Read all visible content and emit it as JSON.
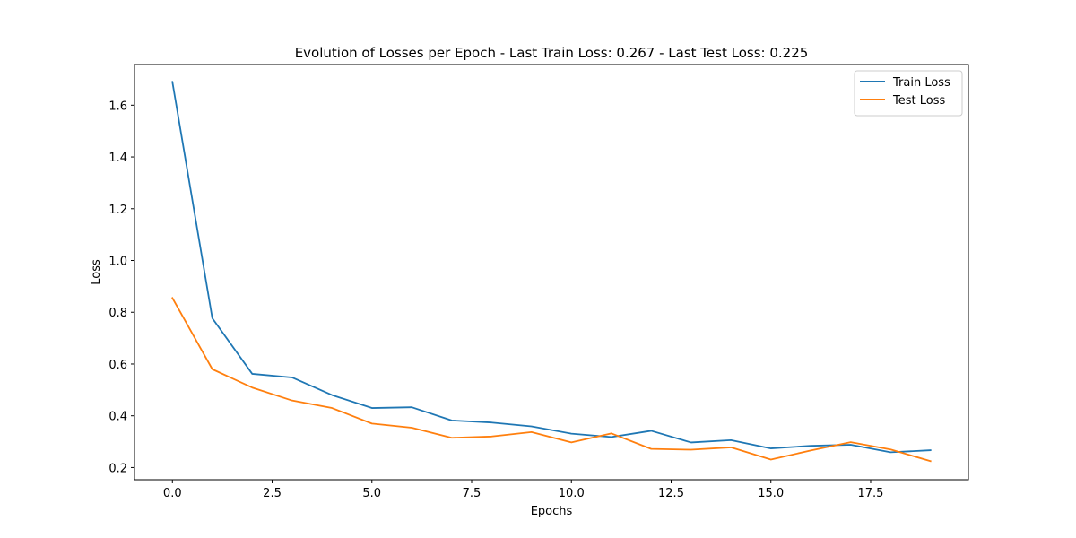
{
  "chart_data": {
    "type": "line",
    "title": "Evolution of Losses per Epoch - Last Train Loss: 0.267 - Last Test Loss: 0.225",
    "xlabel": "Epochs",
    "ylabel": "Loss",
    "x": [
      0,
      1,
      2,
      3,
      4,
      5,
      6,
      7,
      8,
      9,
      10,
      11,
      12,
      13,
      14,
      15,
      16,
      17,
      18,
      19
    ],
    "xlim": [
      -0.95,
      19.95
    ],
    "ylim": [
      0.153,
      1.757
    ],
    "xticks": [
      0.0,
      2.5,
      5.0,
      7.5,
      10.0,
      12.5,
      15.0,
      17.5
    ],
    "xtick_labels": [
      "0.0",
      "2.5",
      "5.0",
      "7.5",
      "10.0",
      "12.5",
      "15.0",
      "17.5"
    ],
    "yticks": [
      0.2,
      0.4,
      0.6,
      0.8,
      1.0,
      1.2,
      1.4,
      1.6
    ],
    "ytick_labels": [
      "0.2",
      "0.4",
      "0.6",
      "0.8",
      "1.0",
      "1.2",
      "1.4",
      "1.6"
    ],
    "grid": false,
    "legend_position": "top-right",
    "series": [
      {
        "name": "Train Loss",
        "color": "#1f77b4",
        "values": [
          1.69,
          0.777,
          0.562,
          0.548,
          0.48,
          0.43,
          0.433,
          0.382,
          0.374,
          0.359,
          0.331,
          0.318,
          0.342,
          0.297,
          0.306,
          0.274,
          0.284,
          0.288,
          0.259,
          0.267
        ]
      },
      {
        "name": "Test Loss",
        "color": "#ff7f0e",
        "values": [
          0.855,
          0.58,
          0.509,
          0.459,
          0.43,
          0.37,
          0.354,
          0.315,
          0.32,
          0.337,
          0.297,
          0.332,
          0.272,
          0.269,
          0.278,
          0.231,
          0.266,
          0.298,
          0.27,
          0.225
        ]
      }
    ]
  }
}
